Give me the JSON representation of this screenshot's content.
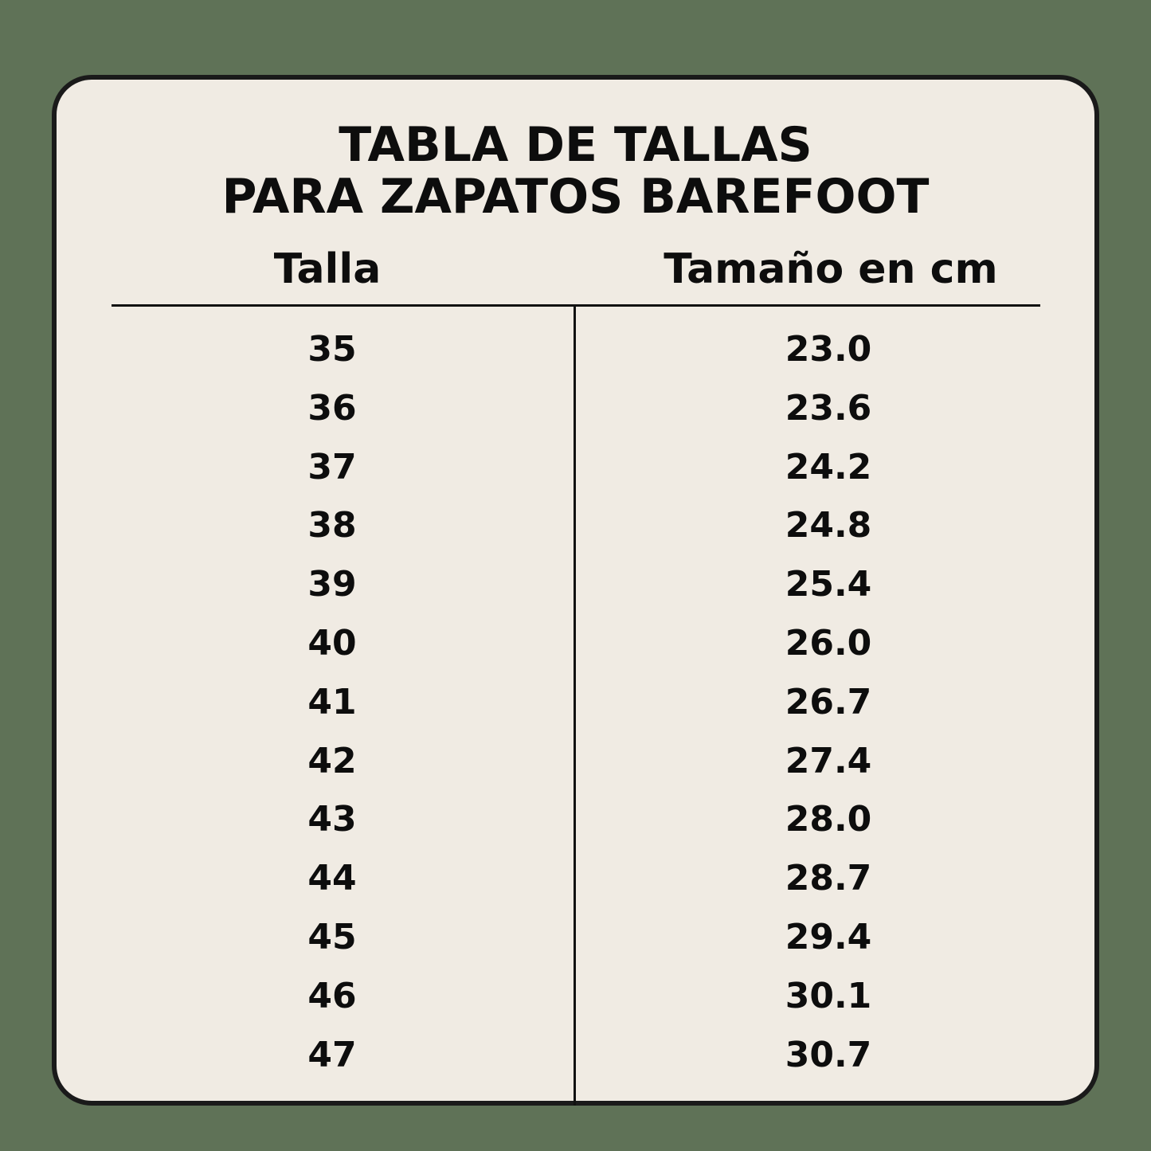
{
  "colors": {
    "background": "#5f7257",
    "card": "#f0ebe3",
    "text": "#0d0d0d"
  },
  "title": {
    "line1": "TABLA DE TALLAS",
    "line2": "PARA ZAPATOS BAREFOOT"
  },
  "headers": {
    "size": "Talla",
    "length": "Tamaño en cm"
  },
  "rows": [
    {
      "size": "35",
      "cm": "23.0"
    },
    {
      "size": "36",
      "cm": "23.6"
    },
    {
      "size": "37",
      "cm": "24.2"
    },
    {
      "size": "38",
      "cm": "24.8"
    },
    {
      "size": "39",
      "cm": "25.4"
    },
    {
      "size": "40",
      "cm": "26.0"
    },
    {
      "size": "41",
      "cm": "26.7"
    },
    {
      "size": "42",
      "cm": "27.4"
    },
    {
      "size": "43",
      "cm": "28.0"
    },
    {
      "size": "44",
      "cm": "28.7"
    },
    {
      "size": "45",
      "cm": "29.4"
    },
    {
      "size": "46",
      "cm": "30.1"
    },
    {
      "size": "47",
      "cm": "30.7"
    }
  ]
}
